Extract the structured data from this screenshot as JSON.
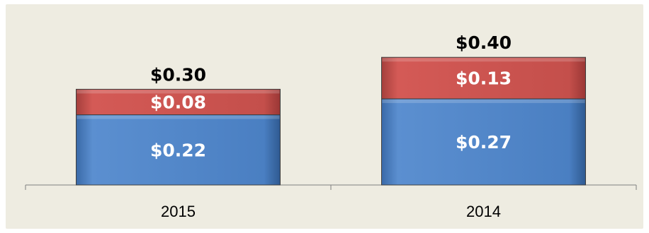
{
  "chart_data": {
    "type": "bar",
    "stacked": true,
    "categories": [
      "2015",
      "2014"
    ],
    "series": [
      {
        "values": [
          0.22,
          0.27
        ],
        "labels": [
          "$0.22",
          "$0.27"
        ],
        "color": "#4f81bd"
      },
      {
        "values": [
          0.08,
          0.13
        ],
        "labels": [
          "$0.08",
          "$0.13"
        ],
        "color": "#c0504d"
      }
    ],
    "totals": [
      0.3,
      0.4
    ],
    "total_labels": [
      "$0.30",
      "$0.40"
    ],
    "title": "",
    "xlabel": "",
    "ylabel": "",
    "ylim": [
      0,
      0.5
    ],
    "grid": false,
    "background": "#eeece1"
  }
}
